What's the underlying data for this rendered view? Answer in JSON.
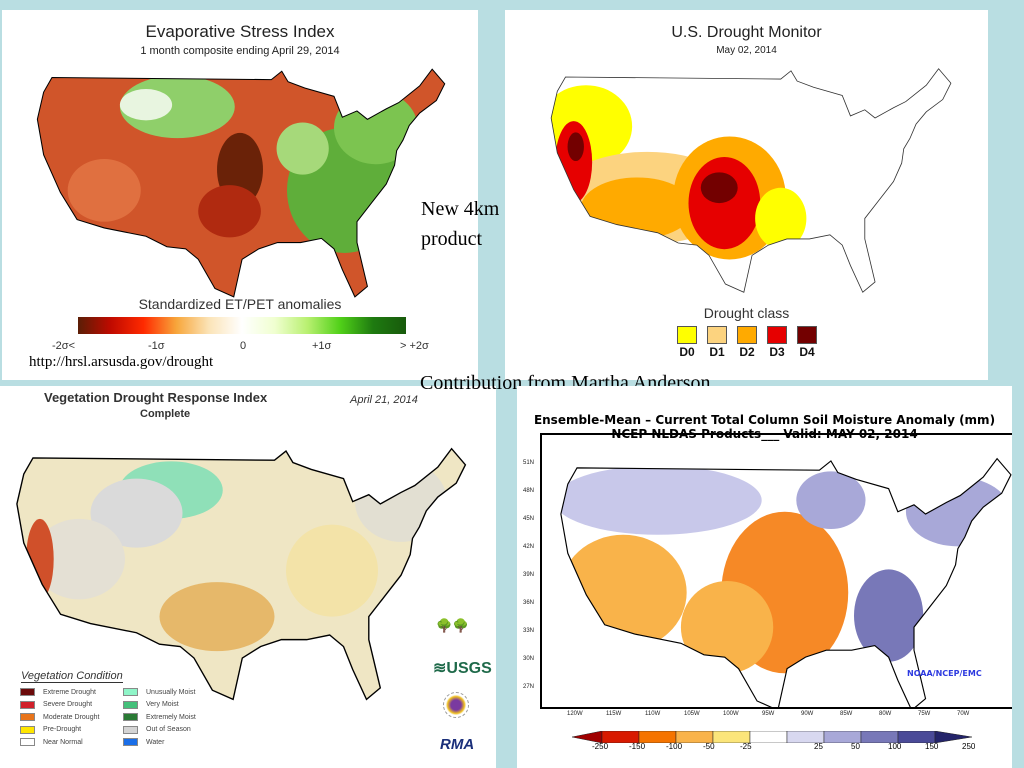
{
  "esi": {
    "title": "Evaporative Stress Index",
    "subtitle": "1 month composite ending April 29, 2014",
    "colorbar_title": "Standardized  ET/PET anomalies",
    "ticks": [
      "-2σ<",
      "-1σ",
      "0",
      "+1σ",
      "> +2σ"
    ],
    "url": "http://hrsl.arsusda.gov/drought"
  },
  "drought_monitor": {
    "title": "U.S. Drought Monitor",
    "date": "May 02, 2014",
    "legend_title": "Drought class",
    "classes": [
      {
        "label": "D0",
        "color": "#ffff00"
      },
      {
        "label": "D1",
        "color": "#fcd37f"
      },
      {
        "label": "D2",
        "color": "#ffaa00"
      },
      {
        "label": "D3",
        "color": "#e60000"
      },
      {
        "label": "D4",
        "color": "#730000"
      }
    ]
  },
  "annotations": {
    "new_product_line1": "New 4km",
    "new_product_line2": "product",
    "contribution": "Contribution from Martha Anderson"
  },
  "vegdri": {
    "title": "Vegetation Drought Response Index",
    "subtitle": "Complete",
    "date": "April 21, 2014",
    "legend_title": "Vegetation Condition",
    "legend": [
      {
        "label": "Extreme Drought",
        "color": "#6b0a0a"
      },
      {
        "label": "Severe Drought",
        "color": "#d0202a"
      },
      {
        "label": "Moderate Drought",
        "color": "#e8741a"
      },
      {
        "label": "Pre-Drought",
        "color": "#ffe600"
      },
      {
        "label": "Near Normal",
        "color": "#ffffff"
      },
      {
        "label": "Unusually Moist",
        "color": "#8ff5c8"
      },
      {
        "label": "Very Moist",
        "color": "#44c07a"
      },
      {
        "label": "Extremely Moist",
        "color": "#2a7a35"
      },
      {
        "label": "Out of Season",
        "color": "#d4d4d4"
      },
      {
        "label": "Water",
        "color": "#1a6ee8"
      }
    ],
    "logos": {
      "usgs": "≋USGS",
      "rma": "RMA"
    }
  },
  "soil_moisture": {
    "title_line1": "Ensemble-Mean – Current Total Column Soil Moisture Anomaly (mm)",
    "title_line2": "NCEP NLDAS Products___ Valid: MAY 02, 2014",
    "lat_labels": [
      "51N",
      "48N",
      "45N",
      "42N",
      "39N",
      "36N",
      "33N",
      "30N",
      "27N"
    ],
    "lon_labels": [
      "120W",
      "115W",
      "110W",
      "105W",
      "100W",
      "95W",
      "90W",
      "85W",
      "80W",
      "75W",
      "70W"
    ],
    "credit": "NOAA/NCEP/EMC",
    "colorbar_ticks": [
      "-250",
      "-150",
      "-100",
      "-50",
      "-25",
      "25",
      "50",
      "100",
      "150",
      "250"
    ],
    "colorbar_colors": [
      "#a00000",
      "#d81a00",
      "#f57400",
      "#f9b34a",
      "#fbe57a",
      "#ffffff",
      "#d8d8f0",
      "#a8a8d8",
      "#7878b8",
      "#4a4a98",
      "#24246a"
    ]
  }
}
